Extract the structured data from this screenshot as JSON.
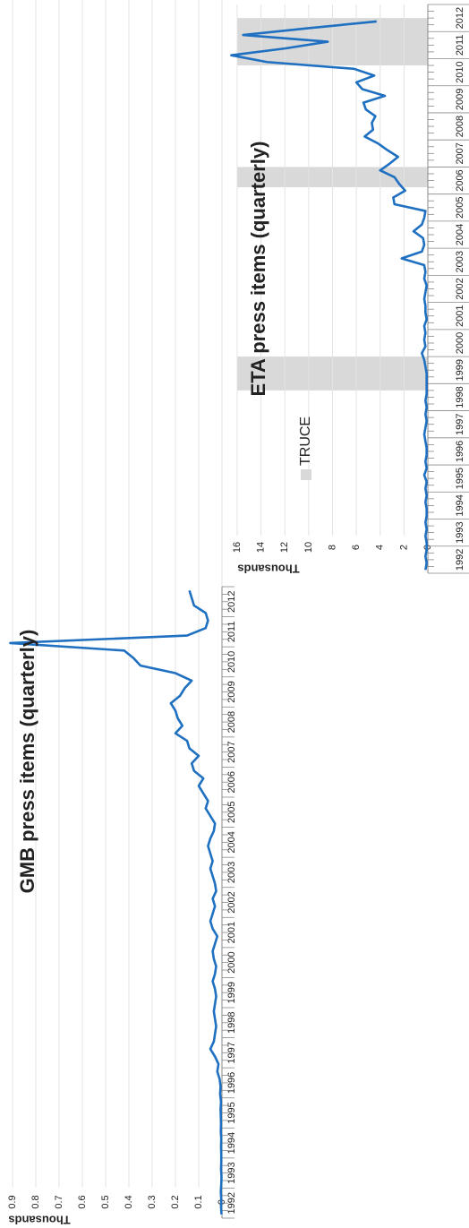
{
  "chart_data": [
    {
      "type": "line",
      "title": "GMB press items (quarterly)",
      "y_label": "Thousands",
      "categories": [
        "1992",
        null,
        null,
        null,
        "1993",
        null,
        null,
        null,
        "1994",
        null,
        null,
        null,
        "1995",
        null,
        null,
        null,
        "1996",
        null,
        null,
        null,
        "1997",
        null,
        null,
        null,
        "1998",
        null,
        null,
        null,
        "1999",
        null,
        null,
        null,
        "2000",
        null,
        null,
        null,
        "2001",
        null,
        null,
        null,
        "2002",
        null,
        null,
        null,
        "2003",
        null,
        null,
        null,
        "2004",
        null,
        null,
        null,
        "2005",
        null,
        null,
        null,
        "2006",
        null,
        null,
        null,
        "2007",
        null,
        null,
        null,
        "2008",
        null,
        null,
        null,
        "2009",
        null,
        null,
        null,
        "2010",
        null,
        null,
        null,
        "2011",
        null,
        null,
        null,
        "2012",
        null,
        null,
        null
      ],
      "values": [
        0.002,
        0.004,
        0.003,
        0.005,
        0.003,
        0.002,
        0.004,
        0.003,
        0.003,
        0.004,
        0.003,
        0.005,
        0.004,
        0.005,
        0.006,
        0.004,
        0.008,
        0.006,
        0.01,
        0.02,
        0.015,
        0.03,
        0.05,
        0.035,
        0.03,
        0.025,
        0.03,
        0.035,
        0.03,
        0.025,
        0.03,
        0.04,
        0.03,
        0.025,
        0.035,
        0.04,
        0.03,
        0.02,
        0.04,
        0.05,
        0.04,
        0.03,
        0.04,
        0.025,
        0.03,
        0.04,
        0.05,
        0.04,
        0.05,
        0.06,
        0.05,
        0.035,
        0.03,
        0.05,
        0.07,
        0.06,
        0.08,
        0.1,
        0.08,
        0.12,
        0.13,
        0.1,
        0.14,
        0.15,
        0.2,
        0.17,
        0.19,
        0.2,
        0.22,
        0.18,
        0.16,
        0.13,
        0.2,
        0.35,
        0.38,
        0.42,
        0.91,
        0.15,
        0.07,
        0.06,
        0.07,
        0.12,
        0.13,
        0.14
      ],
      "color": "#1f70c1",
      "ylim": [
        0,
        0.9
      ],
      "yticks": [
        0,
        0.1,
        0.2,
        0.3,
        0.4,
        0.5,
        0.6,
        0.7,
        0.8,
        0.9
      ],
      "grid": true
    },
    {
      "type": "line",
      "title": "ETA press items (quarterly)",
      "y_label": "Thousands",
      "categories": [
        "1992",
        null,
        null,
        null,
        "1993",
        null,
        null,
        null,
        "1994",
        null,
        null,
        null,
        "1995",
        null,
        null,
        null,
        "1996",
        null,
        null,
        null,
        "1997",
        null,
        null,
        null,
        "1998",
        null,
        null,
        null,
        "1999",
        null,
        null,
        null,
        "2000",
        null,
        null,
        null,
        "2001",
        null,
        null,
        null,
        "2002",
        null,
        null,
        null,
        "2003",
        null,
        null,
        null,
        "2004",
        null,
        null,
        null,
        "2005",
        null,
        null,
        null,
        "2006",
        null,
        null,
        null,
        "2007",
        null,
        null,
        null,
        "2008",
        null,
        null,
        null,
        "2009",
        null,
        null,
        null,
        "2010",
        null,
        null,
        null,
        "2011",
        null,
        null,
        null,
        "2012",
        null,
        null,
        null
      ],
      "values": [
        0.2,
        0.1,
        0.2,
        0.1,
        0.1,
        0.2,
        0.1,
        0.2,
        0.1,
        0.1,
        0.2,
        0.1,
        0.2,
        0.1,
        0.3,
        0.1,
        0.2,
        0.1,
        0.1,
        0.2,
        0.3,
        0.2,
        0.1,
        0.2,
        0.1,
        0.2,
        0.1,
        0.1,
        0.1,
        0.1,
        0.2,
        0.3,
        0.5,
        0.2,
        0.3,
        0.2,
        0.3,
        0.1,
        0.2,
        0.2,
        0.3,
        0.2,
        0.1,
        0.3,
        0.2,
        0.3,
        2.2,
        0.5,
        0.3,
        0.4,
        1.2,
        0.5,
        0.3,
        0.2,
        2.8,
        2.9,
        1.9,
        2.4,
        2.8,
        4.0,
        3.2,
        2.5,
        3.4,
        4.2,
        5.3,
        4.6,
        4.7,
        4.4,
        5.2,
        5.4,
        3.6,
        5.5,
        6.0,
        4.5,
        6.2,
        13.5,
        16.5,
        12.0,
        8.4,
        15.5,
        10.0,
        4.3,
        null,
        null
      ],
      "color": "#1f70c1",
      "ylim": [
        0,
        16
      ],
      "yticks": [
        0,
        2,
        4,
        6,
        8,
        10,
        12,
        14,
        16
      ],
      "grid": true,
      "shaded": [
        [
          1998.75,
          2000
        ],
        [
          2006.25,
          2007
        ],
        [
          2010.75,
          2012.5
        ]
      ],
      "shaded_label": "TRUCE",
      "shaded_color": "#d9d9d9"
    }
  ]
}
